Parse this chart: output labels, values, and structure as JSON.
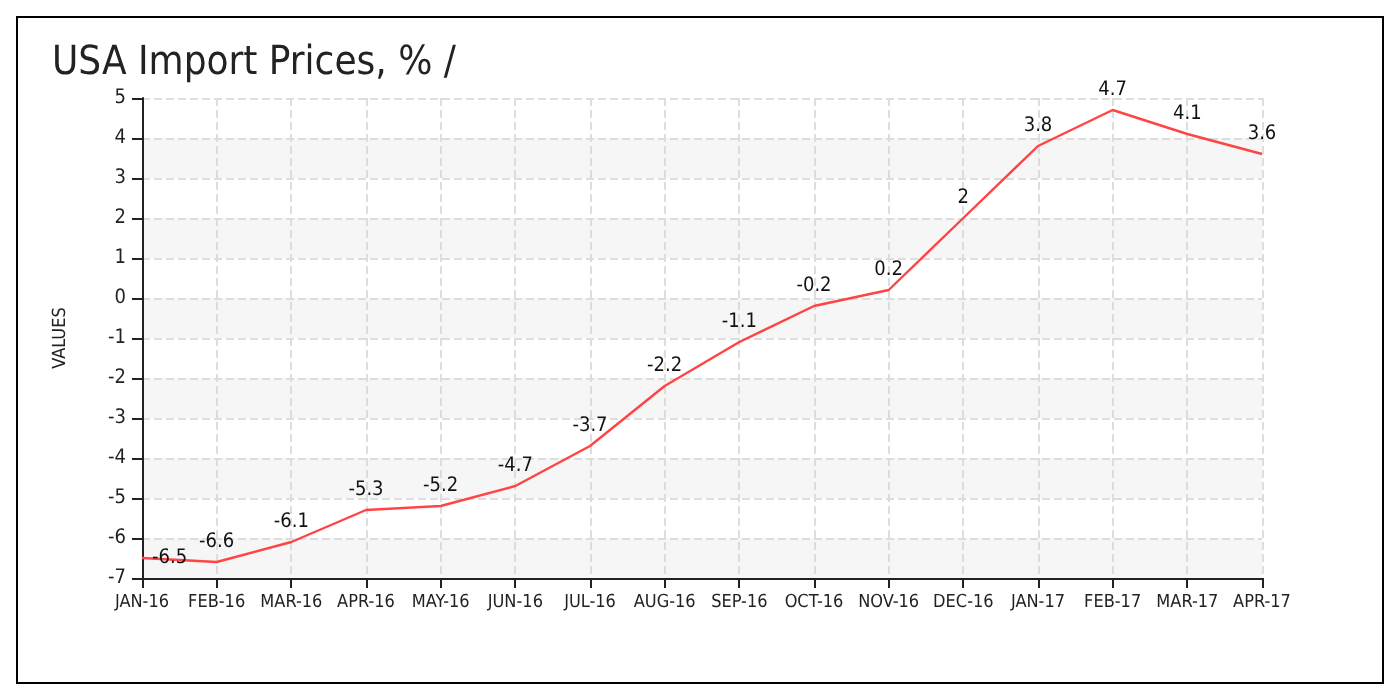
{
  "chart_data": {
    "type": "line",
    "title": "USA Import Prices, % /",
    "ylabel": "VALUES",
    "categories": [
      "JAN-16",
      "FEB-16",
      "MAR-16",
      "APR-16",
      "MAY-16",
      "JUN-16",
      "JUL-16",
      "AUG-16",
      "SEP-16",
      "OCT-16",
      "NOV-16",
      "DEC-16",
      "JAN-17",
      "FEB-17",
      "MAR-17",
      "APR-17"
    ],
    "series": [
      {
        "color": "#ff4444",
        "values": [
          -6.5,
          -6.6,
          -6.1,
          -5.3,
          -5.2,
          -4.7,
          -3.7,
          -2.2,
          -1.1,
          -0.2,
          0.2,
          2,
          3.8,
          4.7,
          4.1,
          3.6
        ]
      }
    ],
    "ylim": [
      -7,
      5
    ],
    "yticks": [
      -7,
      -6,
      -5,
      -4,
      -3,
      -2,
      -1,
      0,
      1,
      2,
      3,
      4,
      5
    ],
    "grid": true,
    "data_labels": true,
    "marker": "none",
    "line_style": "solid"
  }
}
